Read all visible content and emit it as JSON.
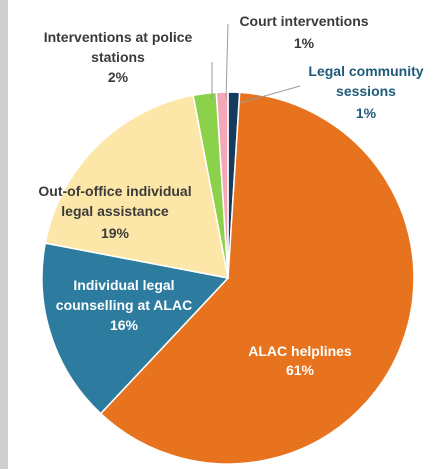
{
  "chart_data": {
    "type": "pie",
    "title": "",
    "slices": [
      {
        "label": "ALAC helplines",
        "value": 61,
        "value_label": "61%",
        "color": "#e8731f"
      },
      {
        "label": "Individual legal counselling at ALAC",
        "value": 16,
        "value_label": "16%",
        "color": "#2d7b9e"
      },
      {
        "label": "Out-of-office individual legal assistance",
        "value": 19,
        "value_label": "19%",
        "color": "#fde7a8"
      },
      {
        "label": "Interventions at police stations",
        "value": 2,
        "value_label": "2%",
        "color": "#8cd14a"
      },
      {
        "label": "Court interventions",
        "value": 1,
        "value_label": "1%",
        "color": "#f5a7b8"
      },
      {
        "label": "Legal community sessions",
        "value": 1,
        "value_label": "1%",
        "color": "#173b5e"
      }
    ]
  },
  "labels": {
    "alac_helplines": {
      "line1": "ALAC helplines",
      "pct": "61%"
    },
    "counselling": {
      "line1": "Individual legal",
      "line2": "counselling at ALAC",
      "pct": "16%"
    },
    "out_of_office": {
      "line1": "Out-of-office individual",
      "line2": "legal assistance",
      "pct": "19%"
    },
    "police": {
      "line1": "Interventions at police",
      "line2": "stations",
      "pct": "2%"
    },
    "court": {
      "line1": "Court interventions",
      "pct": "1%"
    },
    "community": {
      "line1": "Legal community",
      "line2": "sessions",
      "pct": "1%"
    }
  }
}
